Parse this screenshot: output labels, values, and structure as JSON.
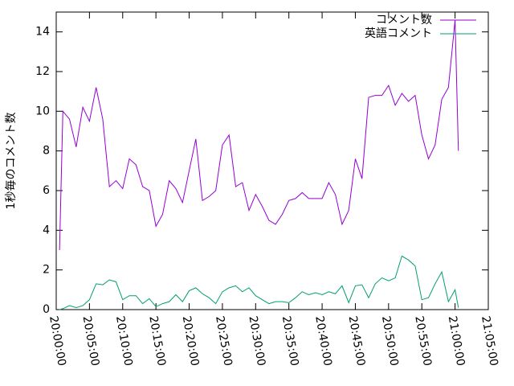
{
  "chart_data": {
    "type": "line",
    "ylabel": "1秒毎のコメント数",
    "x": [
      "20:00:30",
      "20:01:00",
      "20:02:00",
      "20:03:00",
      "20:04:00",
      "20:05:00",
      "20:06:00",
      "20:07:00",
      "20:08:00",
      "20:09:00",
      "20:10:00",
      "20:11:00",
      "20:12:00",
      "20:13:00",
      "20:14:00",
      "20:15:00",
      "20:16:00",
      "20:17:00",
      "20:18:00",
      "20:19:00",
      "20:20:00",
      "20:21:00",
      "20:22:00",
      "20:23:00",
      "20:24:00",
      "20:25:00",
      "20:26:00",
      "20:27:00",
      "20:28:00",
      "20:29:00",
      "20:30:00",
      "20:31:00",
      "20:32:00",
      "20:33:00",
      "20:34:00",
      "20:35:00",
      "20:36:00",
      "20:37:00",
      "20:38:00",
      "20:39:00",
      "20:40:00",
      "20:41:00",
      "20:42:00",
      "20:43:00",
      "20:44:00",
      "20:45:00",
      "20:46:00",
      "20:47:00",
      "20:48:00",
      "20:49:00",
      "20:50:00",
      "20:51:00",
      "20:52:00",
      "20:53:00",
      "20:54:00",
      "20:55:00",
      "20:56:00",
      "20:57:00",
      "20:58:00",
      "20:59:00",
      "21:00:00",
      "21:00:30"
    ],
    "series": [
      {
        "name": "コメント数",
        "color": "#9400d3",
        "values": [
          3.0,
          10.0,
          9.6,
          8.2,
          10.2,
          9.5,
          11.2,
          9.6,
          6.2,
          6.5,
          6.1,
          7.6,
          7.3,
          6.2,
          6.0,
          4.2,
          4.8,
          6.5,
          6.1,
          5.4,
          7.0,
          8.6,
          5.5,
          5.7,
          6.0,
          8.3,
          8.8,
          6.2,
          6.4,
          5.0,
          5.8,
          5.2,
          4.5,
          4.3,
          4.8,
          5.5,
          5.6,
          5.9,
          5.6,
          5.6,
          5.6,
          6.4,
          5.8,
          4.3,
          5.0,
          7.6,
          6.6,
          10.7,
          10.8,
          10.8,
          11.3,
          10.3,
          10.9,
          10.5,
          10.8,
          8.8,
          7.6,
          8.3,
          10.6,
          11.2,
          14.6,
          8.0
        ]
      },
      {
        "name": "英語コメント",
        "color": "#009e73",
        "values": [
          0.0,
          0.05,
          0.2,
          0.1,
          0.2,
          0.5,
          1.3,
          1.25,
          1.5,
          1.4,
          0.5,
          0.7,
          0.7,
          0.3,
          0.55,
          0.15,
          0.3,
          0.4,
          0.75,
          0.4,
          0.95,
          1.1,
          0.8,
          0.6,
          0.3,
          0.9,
          1.1,
          1.2,
          0.9,
          1.1,
          0.7,
          0.5,
          0.3,
          0.4,
          0.4,
          0.35,
          0.6,
          0.9,
          0.75,
          0.85,
          0.75,
          0.9,
          0.8,
          1.2,
          0.35,
          1.2,
          1.25,
          0.6,
          1.3,
          1.6,
          1.45,
          1.6,
          2.7,
          2.5,
          2.2,
          0.5,
          0.6,
          1.3,
          1.9,
          0.4,
          1.0,
          0.1
        ]
      }
    ],
    "xlim": [
      "20:00:00",
      "21:05:00"
    ],
    "xticks": [
      "20:00:00",
      "20:05:00",
      "20:10:00",
      "20:15:00",
      "20:20:00",
      "20:25:00",
      "20:30:00",
      "20:35:00",
      "20:40:00",
      "20:45:00",
      "20:50:00",
      "20:55:00",
      "21:00:00",
      "21:05:00"
    ],
    "ylim": [
      0,
      15
    ],
    "yticks": [
      0,
      2,
      4,
      6,
      8,
      10,
      12,
      14
    ],
    "legend": "top-right"
  }
}
